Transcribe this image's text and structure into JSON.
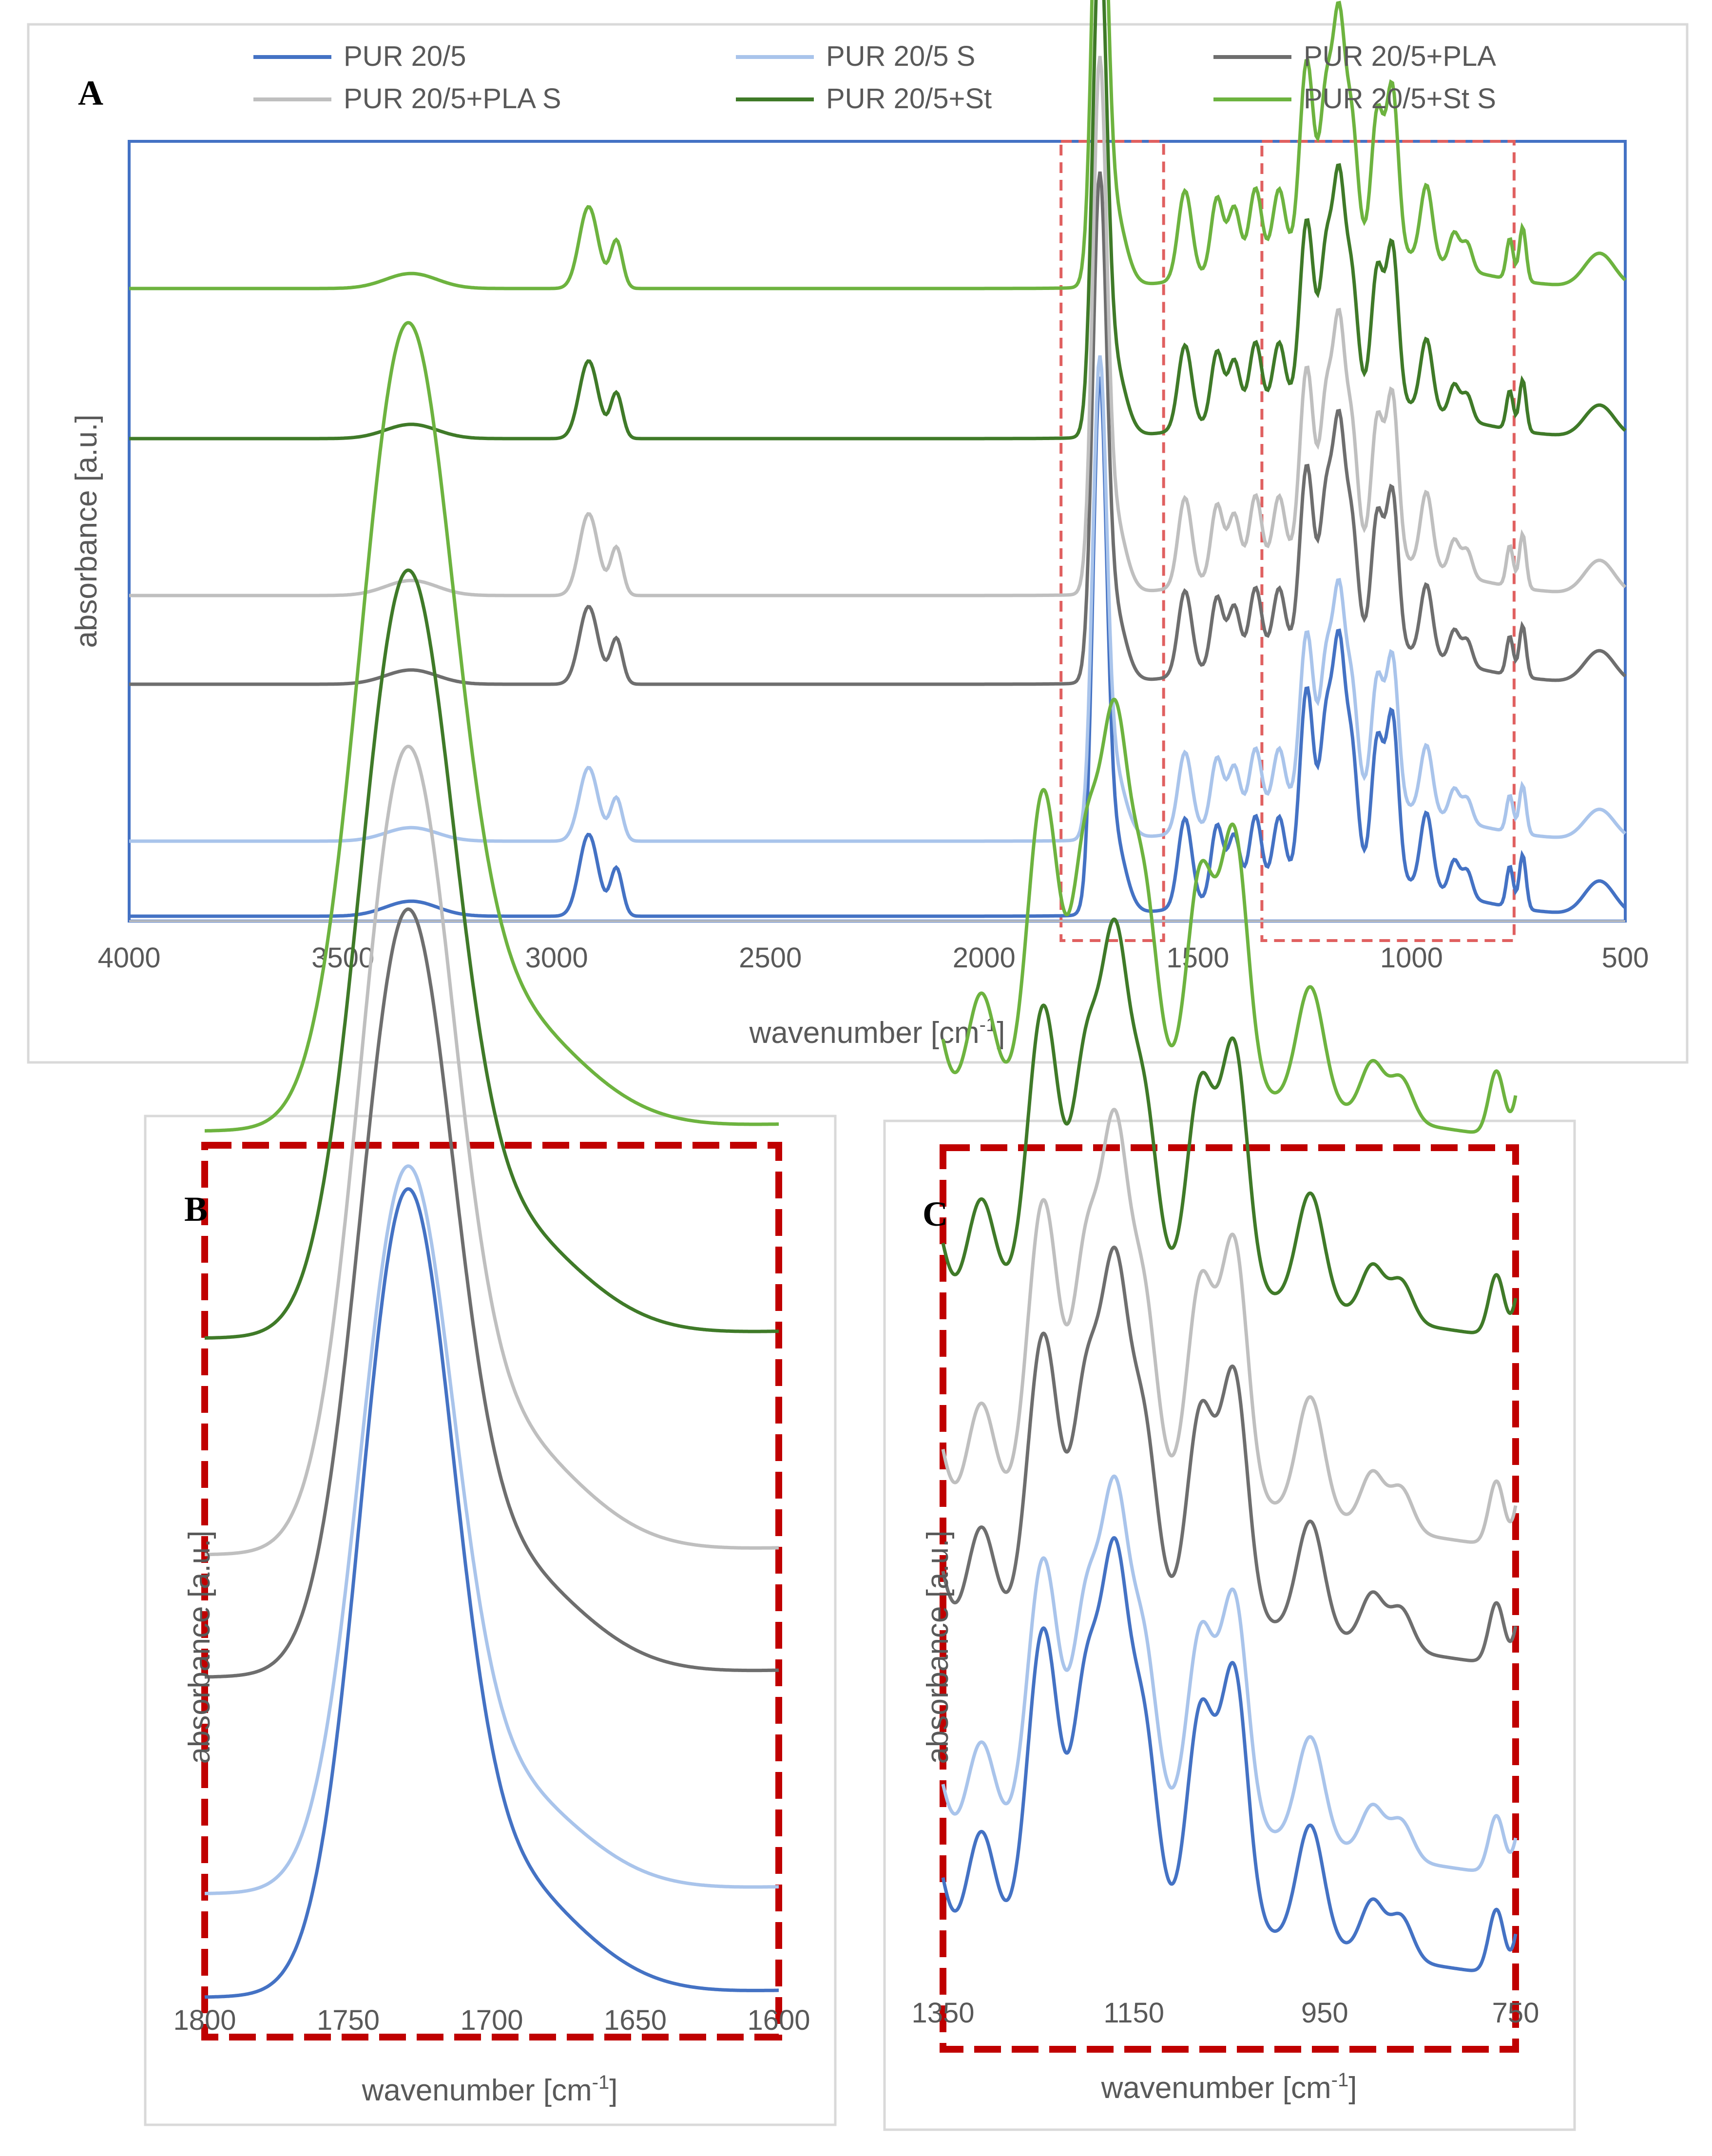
{
  "chart_data": [
    {
      "panel": "A",
      "type": "line",
      "xlabel_main": "wavenumber [cm",
      "xlabel_sup": "-1",
      "xlabel_end": "]",
      "ylabel": "absorbance [a.u.]",
      "xlim": [
        4000,
        500
      ],
      "xticks": [
        "4000",
        "3500",
        "3000",
        "2500",
        "2000",
        "1500",
        "1000",
        "500"
      ],
      "series": [
        {
          "name": "PUR 20/5",
          "color": "#4472C4",
          "offset": 0.0
        },
        {
          "name": "PUR 20/5 S",
          "color": "#A9C4EB",
          "offset": 0.11
        },
        {
          "name": "PUR 20/5+PLA",
          "color": "#6E6E6E",
          "offset": 0.34
        },
        {
          "name": "PUR 20/5+PLA S",
          "color": "#BFBFBF",
          "offset": 0.47
        },
        {
          "name": "PUR 20/5+St",
          "color": "#3F7A28",
          "offset": 0.7
        },
        {
          "name": "PUR 20/5+St S",
          "color": "#6DB33F",
          "offset": 0.92
        }
      ],
      "highlight_ranges": [
        [
          1820,
          1580
        ],
        [
          1350,
          760
        ]
      ]
    },
    {
      "panel": "B",
      "type": "line",
      "xlabel_main": "wavenumber [cm",
      "xlabel_sup": "-1",
      "xlabel_end": "]",
      "ylabel": "absorbance [a.u.]",
      "xlim": [
        1800,
        1600
      ],
      "xticks": [
        "1800",
        "1750",
        "1700",
        "1650",
        "1600"
      ]
    },
    {
      "panel": "C",
      "type": "line",
      "xlabel_main": "wavenumber [cm",
      "xlabel_sup": "-1",
      "xlabel_end": "]",
      "ylabel": "absorbance [a.u.]",
      "xlim": [
        1350,
        750
      ],
      "xticks": [
        "1350",
        "1150",
        "950",
        "750"
      ]
    }
  ]
}
